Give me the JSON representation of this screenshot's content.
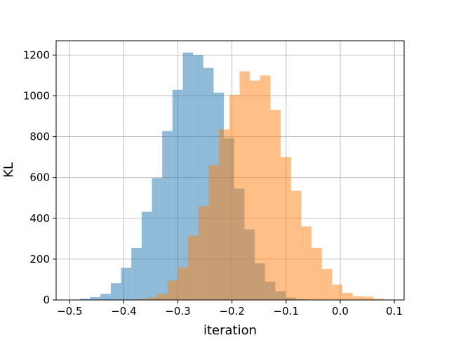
{
  "chart_data": {
    "type": "histogram",
    "title": "",
    "xlabel": "iteration",
    "ylabel": "KL",
    "xlim": [
      -0.525,
      0.118
    ],
    "ylim": [
      0,
      1270
    ],
    "grid": true,
    "legend": "none",
    "xticks": [
      -0.5,
      -0.4,
      -0.3,
      -0.2,
      -0.1,
      0.0,
      0.1
    ],
    "xtick_labels": [
      "−0.5",
      "−0.4",
      "−0.3",
      "−0.2",
      "−0.1",
      "0.0",
      "0.1"
    ],
    "yticks": [
      0,
      200,
      400,
      600,
      800,
      1000,
      1200
    ],
    "ytick_labels": [
      "0",
      "200",
      "400",
      "600",
      "800",
      "1000",
      "1200"
    ],
    "series": [
      {
        "color": "#1f77b4",
        "alpha": 0.5,
        "bins": [
          {
            "x0": -0.5,
            "x1": -0.481,
            "count": 2
          },
          {
            "x0": -0.481,
            "x1": -0.462,
            "count": 6
          },
          {
            "x0": -0.462,
            "x1": -0.443,
            "count": 14
          },
          {
            "x0": -0.443,
            "x1": -0.424,
            "count": 30
          },
          {
            "x0": -0.424,
            "x1": -0.405,
            "count": 82
          },
          {
            "x0": -0.405,
            "x1": -0.386,
            "count": 158
          },
          {
            "x0": -0.386,
            "x1": -0.367,
            "count": 255
          },
          {
            "x0": -0.367,
            "x1": -0.348,
            "count": 432
          },
          {
            "x0": -0.348,
            "x1": -0.329,
            "count": 597
          },
          {
            "x0": -0.329,
            "x1": -0.31,
            "count": 828
          },
          {
            "x0": -0.31,
            "x1": -0.291,
            "count": 1030
          },
          {
            "x0": -0.291,
            "x1": -0.272,
            "count": 1212
          },
          {
            "x0": -0.272,
            "x1": -0.253,
            "count": 1200
          },
          {
            "x0": -0.253,
            "x1": -0.234,
            "count": 1137
          },
          {
            "x0": -0.234,
            "x1": -0.215,
            "count": 1016
          },
          {
            "x0": -0.215,
            "x1": -0.196,
            "count": 793
          },
          {
            "x0": -0.196,
            "x1": -0.177,
            "count": 546
          },
          {
            "x0": -0.177,
            "x1": -0.158,
            "count": 346
          },
          {
            "x0": -0.158,
            "x1": -0.139,
            "count": 180
          },
          {
            "x0": -0.139,
            "x1": -0.12,
            "count": 90
          },
          {
            "x0": -0.12,
            "x1": -0.101,
            "count": 43
          },
          {
            "x0": -0.101,
            "x1": -0.082,
            "count": 12
          },
          {
            "x0": -0.082,
            "x1": -0.063,
            "count": 4
          }
        ]
      },
      {
        "color": "#ff7f0e",
        "alpha": 0.5,
        "bins": [
          {
            "x0": -0.395,
            "x1": -0.376,
            "count": 2
          },
          {
            "x0": -0.376,
            "x1": -0.357,
            "count": 4
          },
          {
            "x0": -0.357,
            "x1": -0.338,
            "count": 12
          },
          {
            "x0": -0.338,
            "x1": -0.319,
            "count": 30
          },
          {
            "x0": -0.319,
            "x1": -0.3,
            "count": 95
          },
          {
            "x0": -0.3,
            "x1": -0.281,
            "count": 160
          },
          {
            "x0": -0.281,
            "x1": -0.262,
            "count": 315
          },
          {
            "x0": -0.262,
            "x1": -0.243,
            "count": 460
          },
          {
            "x0": -0.243,
            "x1": -0.224,
            "count": 660
          },
          {
            "x0": -0.224,
            "x1": -0.205,
            "count": 835
          },
          {
            "x0": -0.205,
            "x1": -0.186,
            "count": 1005
          },
          {
            "x0": -0.186,
            "x1": -0.167,
            "count": 1120
          },
          {
            "x0": -0.167,
            "x1": -0.148,
            "count": 1075
          },
          {
            "x0": -0.148,
            "x1": -0.129,
            "count": 1100
          },
          {
            "x0": -0.129,
            "x1": -0.11,
            "count": 930
          },
          {
            "x0": -0.11,
            "x1": -0.091,
            "count": 700
          },
          {
            "x0": -0.091,
            "x1": -0.072,
            "count": 535
          },
          {
            "x0": -0.072,
            "x1": -0.053,
            "count": 360
          },
          {
            "x0": -0.053,
            "x1": -0.034,
            "count": 255
          },
          {
            "x0": -0.034,
            "x1": -0.015,
            "count": 152
          },
          {
            "x0": -0.015,
            "x1": 0.004,
            "count": 75
          },
          {
            "x0": 0.004,
            "x1": 0.023,
            "count": 35
          },
          {
            "x0": 0.023,
            "x1": 0.042,
            "count": 18
          },
          {
            "x0": 0.042,
            "x1": 0.061,
            "count": 16
          },
          {
            "x0": 0.061,
            "x1": 0.08,
            "count": 6
          },
          {
            "x0": 0.08,
            "x1": 0.099,
            "count": 2
          }
        ]
      }
    ]
  }
}
